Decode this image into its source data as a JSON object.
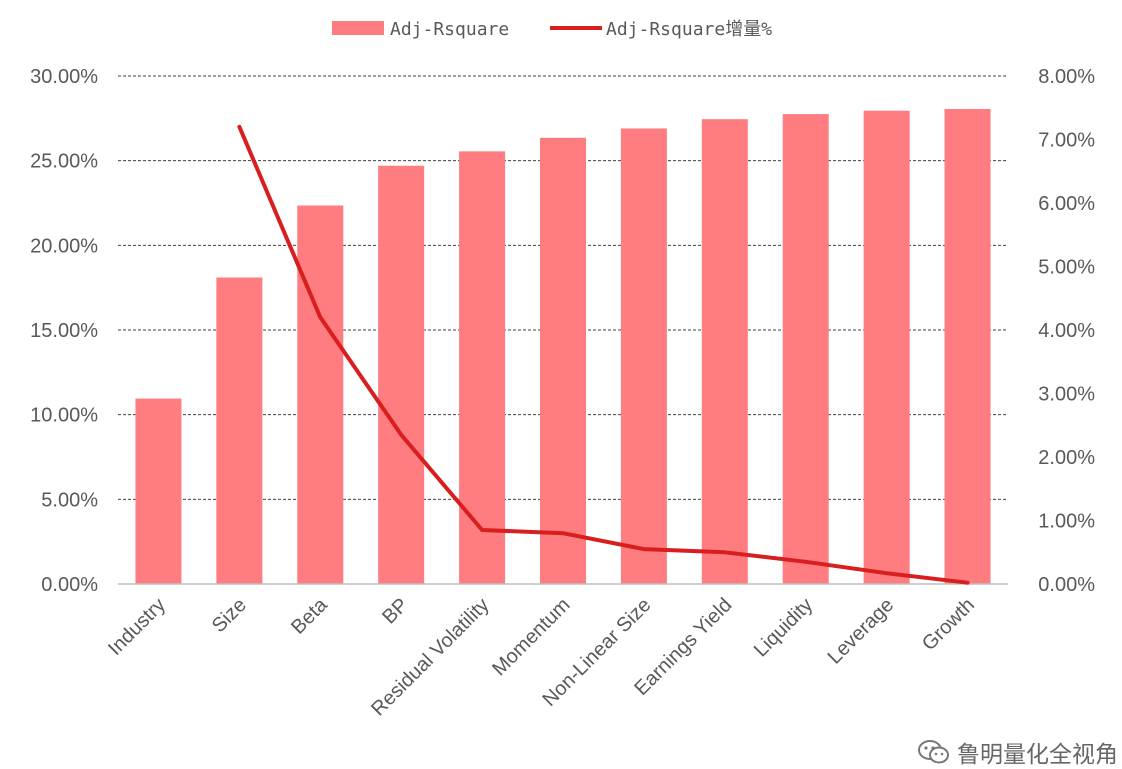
{
  "chart_data": {
    "type": "bar",
    "categories": [
      "Industry",
      "Size",
      "Beta",
      "BP",
      "Residual Volatility",
      "Momentum",
      "Non-Linear Size",
      "Earnings Yield",
      "Liquidity",
      "Leverage",
      "Growth"
    ],
    "series": [
      {
        "name": "Adj-Rsquare",
        "type": "bar",
        "axis": "left",
        "color": "#ff7c80",
        "values": [
          0.1095,
          0.181,
          0.2235,
          0.247,
          0.2555,
          0.2635,
          0.269,
          0.2745,
          0.2775,
          0.2795,
          0.2805
        ]
      },
      {
        "name": "Adj-Rsquare增量%",
        "type": "line",
        "axis": "right",
        "color": "#d81e1e",
        "values": [
          null,
          0.072,
          0.042,
          0.0235,
          0.0085,
          0.008,
          0.0055,
          0.005,
          0.0035,
          0.0017,
          0.0002
        ]
      }
    ],
    "y_left": {
      "ylim": [
        0,
        0.3
      ],
      "ticks": [
        0,
        0.05,
        0.1,
        0.15,
        0.2,
        0.25,
        0.3
      ],
      "tick_labels": [
        "0.00%",
        "5.00%",
        "10.00%",
        "15.00%",
        "20.00%",
        "25.00%",
        "30.00%"
      ]
    },
    "y_right": {
      "ylim": [
        0,
        0.08
      ],
      "ticks": [
        0,
        0.01,
        0.02,
        0.03,
        0.04,
        0.05,
        0.06,
        0.07,
        0.08
      ],
      "tick_labels": [
        "0.00%",
        "1.00%",
        "2.00%",
        "3.00%",
        "4.00%",
        "5.00%",
        "6.00%",
        "7.00%",
        "8.00%"
      ]
    },
    "legend_position": "top",
    "grid": true
  },
  "watermark": {
    "icon": "wechat-icon",
    "text": "鲁明量化全视角"
  }
}
